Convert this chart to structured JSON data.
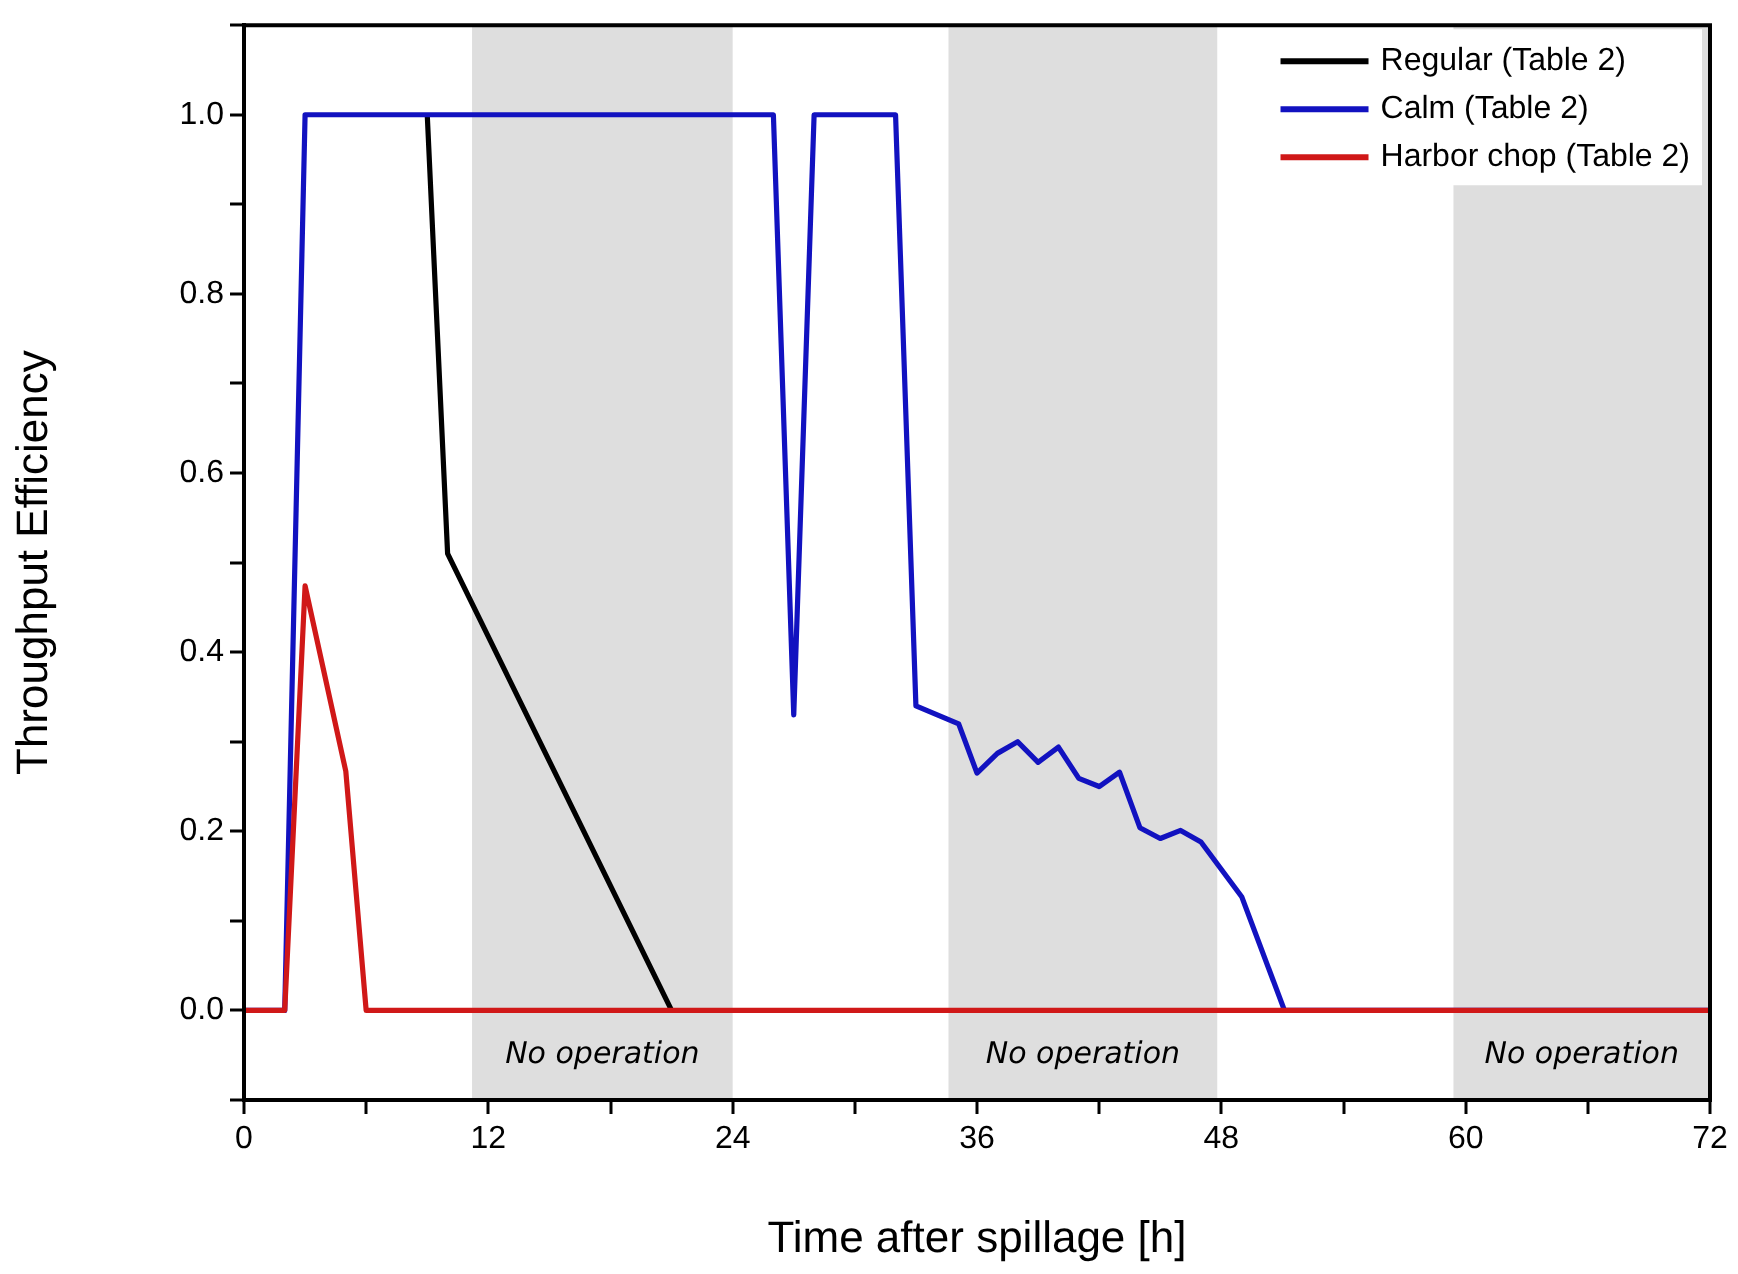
{
  "chart_data": {
    "type": "line",
    "xlabel": "Time after spillage [h]",
    "ylabel": "Throughput Efficiency",
    "xlim": [
      0,
      72
    ],
    "ylim": [
      -0.1,
      1.1
    ],
    "xticks": [
      0,
      {
        "value": 6,
        "label": null
      },
      12,
      {
        "value": 18,
        "label": null
      },
      24,
      {
        "value": 30,
        "label": null
      },
      36,
      {
        "value": 42,
        "label": null
      },
      48,
      {
        "value": 54,
        "label": null
      },
      60,
      {
        "value": 66,
        "label": null
      },
      72
    ],
    "yticks": [
      {
        "value": -0.1,
        "label": null
      },
      {
        "value": 0,
        "label": "0.0"
      },
      {
        "value": 0.1,
        "label": null
      },
      {
        "value": 0.2,
        "label": "0.2"
      },
      {
        "value": 0.3,
        "label": null
      },
      {
        "value": 0.4,
        "label": "0.4"
      },
      {
        "value": 0.5,
        "label": null
      },
      {
        "value": 0.6,
        "label": "0.6"
      },
      {
        "value": 0.7,
        "label": null
      },
      {
        "value": 0.8,
        "label": "0.8"
      },
      {
        "value": 0.9,
        "label": null
      },
      {
        "value": 1,
        "label": "1.0"
      },
      {
        "value": 1.1,
        "label": null
      }
    ],
    "grid": false,
    "legend": "top right",
    "marker": "none",
    "line_style": "solid",
    "bands": [
      {
        "axis": "x",
        "from": 11.2,
        "to": 24,
        "label": "No operation",
        "color": "#dedede"
      },
      {
        "axis": "x",
        "from": 34.6,
        "to": 47.8,
        "label": "No operation",
        "color": "#dedede"
      },
      {
        "axis": "x",
        "from": 59.4,
        "to": 72,
        "label": "No operation",
        "color": "#dedede"
      }
    ],
    "series": [
      {
        "name": "Regular (Table 2)",
        "color": "#000000",
        "x": [
          9,
          10,
          21
        ],
        "values": [
          1,
          0.51,
          0
        ]
      },
      {
        "name": "Calm (Table 2)",
        "color": "#1212c0",
        "x": [
          0,
          2,
          3,
          26,
          27,
          28,
          32,
          33,
          35.1,
          36,
          37,
          38,
          39,
          40,
          41,
          42,
          43,
          44,
          45,
          46,
          47,
          49,
          51.1,
          72
        ],
        "values": [
          0,
          0,
          1,
          1,
          0.33,
          1,
          1,
          0.34,
          0.32,
          0.265,
          0.287,
          0.3,
          0.277,
          0.294,
          0.259,
          0.25,
          0.266,
          0.204,
          0.192,
          0.201,
          0.188,
          0.127,
          0,
          0
        ]
      },
      {
        "name": "Harbor chop (Table 2)",
        "color": "#d01818",
        "x": [
          0,
          2,
          3,
          5,
          6,
          72
        ],
        "values": [
          0,
          0,
          0.474,
          0.267,
          0,
          0
        ]
      }
    ]
  }
}
